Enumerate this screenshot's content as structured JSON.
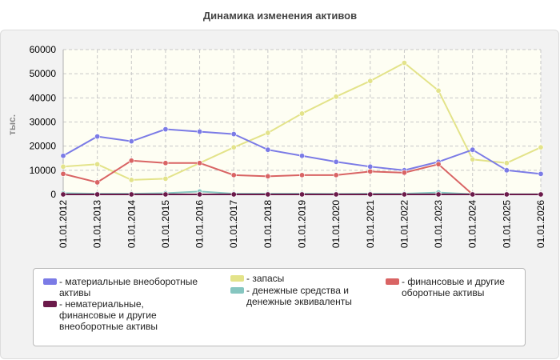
{
  "title": "Динамика изменения активов",
  "colors": {
    "background": "#ffffff",
    "panel": "#f2f2f2",
    "plot": "#fefef3",
    "grid": "#c8c8c8"
  },
  "chart_data": {
    "type": "line",
    "title": "Динамика изменения активов",
    "ylabel": "тыс.",
    "xlabel": "",
    "ylim": [
      0,
      60000
    ],
    "y_ticks": [
      0,
      10000,
      20000,
      30000,
      40000,
      50000,
      60000
    ],
    "grid": true,
    "legend_position": "bottom",
    "categories": [
      "01.01.2012",
      "01.01.2013",
      "01.01.2014",
      "01.01.2015",
      "01.01.2016",
      "01.01.2017",
      "01.01.2018",
      "01.01.2019",
      "01.01.2020",
      "01.01.2021",
      "01.01.2022",
      "01.01.2023",
      "01.01.2024",
      "01.01.2025",
      "01.01.2026"
    ],
    "series": [
      {
        "name": "- материальные внеоборотные активы",
        "color": "#7b7be6",
        "values": [
          16000,
          24000,
          22000,
          27000,
          26000,
          25000,
          18500,
          16000,
          13500,
          11500,
          10000,
          13500,
          18500,
          10000,
          8500
        ]
      },
      {
        "name": "- запасы",
        "color": "#e3e38a",
        "values": [
          11500,
          12500,
          6000,
          6500,
          13000,
          19500,
          25500,
          33500,
          40500,
          47000,
          54500,
          43000,
          14500,
          13000,
          19500
        ]
      },
      {
        "name": "- финансовые и другие оборотные активы",
        "color": "#d96464",
        "values": [
          8500,
          5000,
          14000,
          13000,
          13000,
          8000,
          7500,
          8000,
          8000,
          9500,
          9000,
          12500,
          0,
          0,
          0
        ]
      },
      {
        "name": "- нематериальные, финансовые и другие внеоборотные активы",
        "color": "#6b1a4a",
        "values": [
          0,
          0,
          0,
          0,
          0,
          0,
          0,
          0,
          0,
          0,
          0,
          0,
          0,
          0,
          0
        ]
      },
      {
        "name": "- денежные средства и денежные эквиваленты",
        "color": "#86c6c0",
        "values": [
          500,
          300,
          300,
          500,
          1200,
          300,
          300,
          300,
          200,
          300,
          300,
          800,
          100,
          100,
          100
        ]
      }
    ]
  }
}
